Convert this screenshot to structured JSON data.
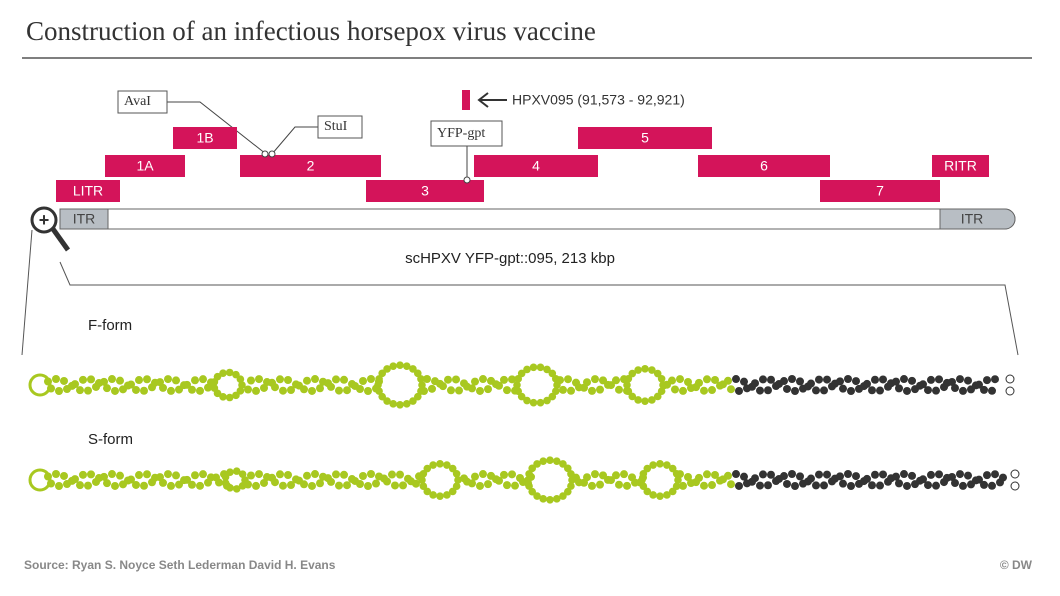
{
  "header": {
    "title": "Construction of an infectious horsepox virus vaccine"
  },
  "fragments": [
    {
      "label": "LITR"
    },
    {
      "label": "1A"
    },
    {
      "label": "1B"
    },
    {
      "label": "2"
    },
    {
      "label": "3"
    },
    {
      "label": "4"
    },
    {
      "label": "5"
    },
    {
      "label": "6"
    },
    {
      "label": "7"
    },
    {
      "label": "RITR"
    }
  ],
  "callouts": {
    "aval": "AvaI",
    "stul": "StuI",
    "yfp": "YFP-gpt",
    "hpxv": "HPXV095 (91,573 - 92,921)"
  },
  "genome": {
    "left_itr": "ITR",
    "right_itr": "ITR",
    "label": "scHPXV YFP-gpt::095, 213 kbp"
  },
  "forms": [
    {
      "label": "F-form"
    },
    {
      "label": "S-form"
    }
  ],
  "footer": {
    "source": "Source:  Ryan S. Noyce Seth Lederman David H. Evans",
    "credit": "© DW"
  }
}
